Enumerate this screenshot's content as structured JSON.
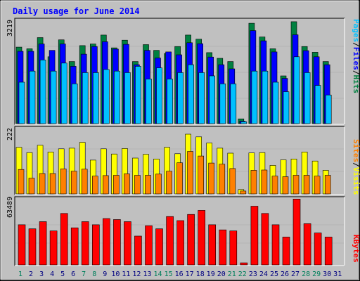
{
  "chart_data": [
    {
      "type": "bar",
      "title": "Daily usage for June 2014",
      "panel": "hits-files-pages",
      "ymax_label": "3219",
      "ylim": [
        0,
        3219
      ],
      "categories": [
        "1",
        "2",
        "3",
        "4",
        "5",
        "6",
        "7",
        "8",
        "9",
        "10",
        "11",
        "12",
        "13",
        "14",
        "15",
        "16",
        "17",
        "18",
        "19",
        "20",
        "21",
        "22",
        "23",
        "24",
        "25",
        "26",
        "27",
        "28",
        "29",
        "30",
        "31"
      ],
      "series": [
        {
          "name": "Hits",
          "color": "#008040",
          "values": [
            2400,
            2350,
            2700,
            2100,
            2630,
            1950,
            2450,
            2500,
            2780,
            2380,
            2620,
            1950,
            2480,
            2300,
            2200,
            2420,
            2780,
            2650,
            2230,
            2050,
            1950,
            150,
            3150,
            2720,
            2350,
            1500,
            3200,
            2420,
            2240,
            1950,
            0
          ]
        },
        {
          "name": "Files",
          "color": "#0000FF",
          "values": [
            2270,
            2270,
            2500,
            2300,
            2500,
            1800,
            2180,
            2420,
            2570,
            2340,
            2490,
            1850,
            2300,
            2060,
            2250,
            2160,
            2540,
            2510,
            2090,
            1850,
            1720,
            80,
            2920,
            2600,
            2250,
            1420,
            2790,
            2290,
            2100,
            1850,
            0
          ]
        },
        {
          "name": "Pages",
          "color": "#00C0FF",
          "values": [
            1300,
            1650,
            2000,
            1650,
            1900,
            1250,
            1600,
            1600,
            1700,
            1650,
            1600,
            1800,
            1400,
            1750,
            1400,
            1600,
            1850,
            1600,
            1500,
            1250,
            1250,
            60,
            1650,
            1650,
            1300,
            1000,
            2100,
            1600,
            1200,
            900,
            0
          ]
        }
      ]
    },
    {
      "type": "bar",
      "panel": "visits-sites",
      "ymax_label": "222",
      "ylim": [
        0,
        222
      ],
      "series": [
        {
          "name": "Visits",
          "color": "#FFFF00",
          "values": [
            160,
            142,
            167,
            144,
            155,
            157,
            177,
            116,
            155,
            137,
            156,
            123,
            136,
            120,
            160,
            138,
            205,
            196,
            175,
            157,
            140,
            15,
            141,
            142,
            98,
            117,
            120,
            144,
            113,
            81,
            0
          ]
        },
        {
          "name": "Sites",
          "color": "#FF8000",
          "values": [
            84,
            54,
            70,
            70,
            86,
            78,
            85,
            61,
            63,
            64,
            69,
            64,
            64,
            68,
            78,
            107,
            146,
            130,
            106,
            102,
            87,
            10,
            81,
            82,
            61,
            59,
            64,
            64,
            61,
            64,
            0
          ]
        }
      ]
    },
    {
      "type": "bar",
      "panel": "kbytes",
      "ymax_label": "63489",
      "ylim": [
        0,
        63489
      ],
      "series": [
        {
          "name": "KBytes",
          "color": "#FF0000",
          "values": [
            39000,
            35000,
            42000,
            33000,
            50000,
            36000,
            42000,
            39000,
            45000,
            44000,
            42000,
            28000,
            38000,
            35000,
            47000,
            43000,
            49000,
            53000,
            39000,
            34000,
            33000,
            2000,
            57000,
            50000,
            39000,
            27000,
            64000,
            40000,
            31000,
            27000,
            0
          ]
        }
      ]
    }
  ],
  "legend_labels": {
    "hits": "Hits",
    "files": "Files",
    "pages": "Pages",
    "visits": "Visits",
    "sites": "Sites",
    "kbytes": "KBytes",
    "sep": "/"
  },
  "weekend_days": [
    1,
    7,
    8,
    14,
    15,
    21,
    22,
    28,
    29
  ],
  "colors": {
    "background": "#C0C0C0",
    "title": "#0000FF",
    "weekday_label": "#000080",
    "weekend_label": "#00805C"
  }
}
